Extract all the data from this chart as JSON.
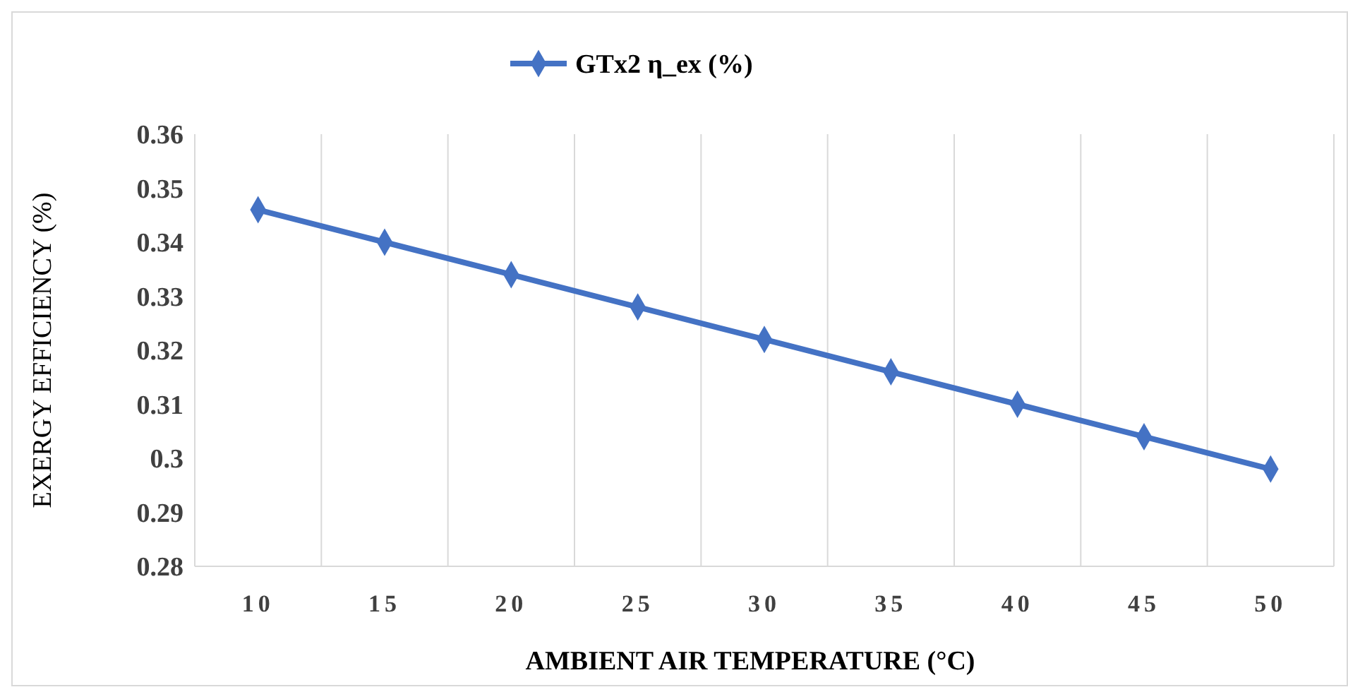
{
  "chart_data": {
    "type": "line",
    "xlabel": "AMBIENT AIR TEMPERATURE (°C)",
    "ylabel": "EXERGY EFFICIENCY (%)",
    "categories": [
      "10",
      "15",
      "20",
      "25",
      "30",
      "35",
      "40",
      "45",
      "50"
    ],
    "series": [
      {
        "name": "GTx2 η_ex (%)",
        "color": "#4472c4",
        "values": [
          0.346,
          0.34,
          0.334,
          0.328,
          0.322,
          0.316,
          0.31,
          0.304,
          0.298
        ]
      }
    ],
    "ylim": [
      0.28,
      0.36
    ],
    "yticks": [
      0.28,
      0.29,
      "0.3",
      0.31,
      0.32,
      0.33,
      0.34,
      0.35,
      0.36
    ],
    "grid": "x",
    "legend": "top",
    "marker": "diamond",
    "line_style": "solid"
  }
}
